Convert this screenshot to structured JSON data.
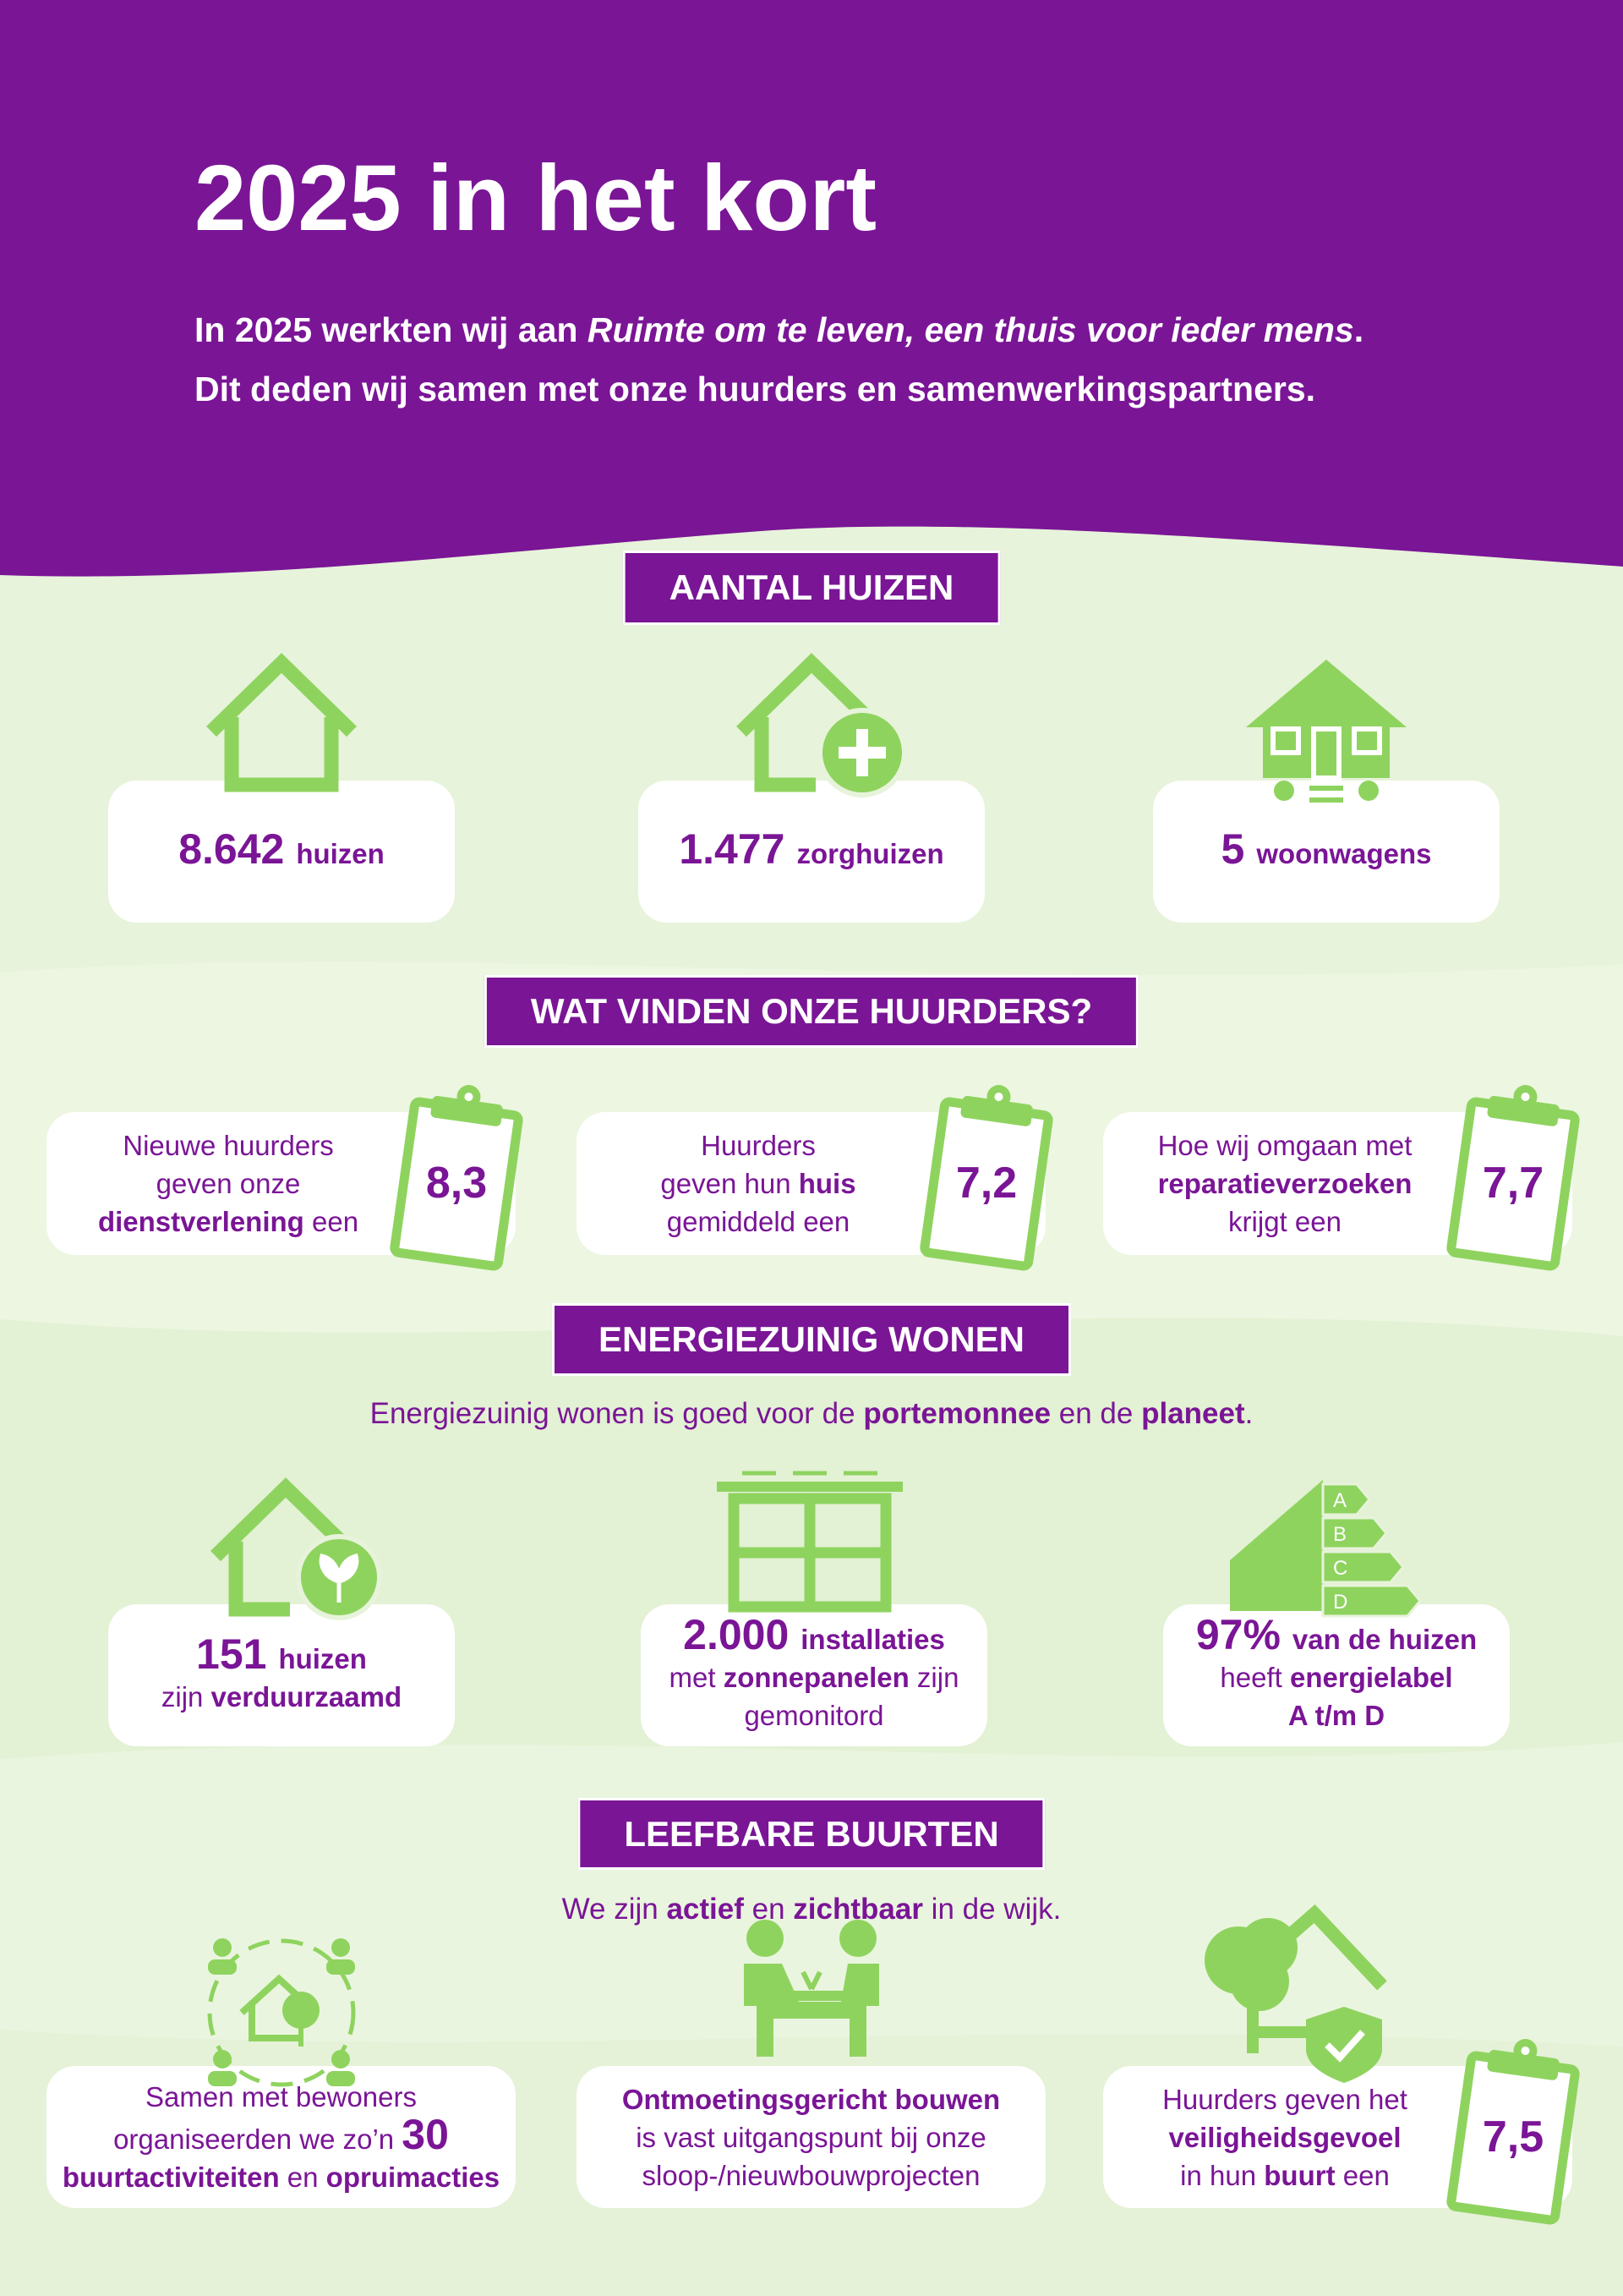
{
  "header": {
    "title": "2025 in het kort",
    "intro": [
      [
        {
          "t": "In 2025 werkten wij aan "
        },
        {
          "t": "Ruimte om te leven, een thuis voor ieder mens",
          "i": true
        },
        {
          "t": "."
        }
      ],
      [
        {
          "t": "Dit deden wij samen met onze huurders en samenwerkingspartners."
        }
      ]
    ]
  },
  "sections": [
    {
      "title": "AANTAL HUIZEN",
      "items": [
        {
          "lines": [
            [
              {
                "t": "8.642",
                "big": true
              },
              {
                "t": "huizen",
                "b": true
              }
            ]
          ]
        },
        {
          "lines": [
            [
              {
                "t": "1.477",
                "big": true
              },
              {
                "t": "zorghuizen",
                "b": true
              }
            ]
          ]
        },
        {
          "lines": [
            [
              {
                "t": "5",
                "big": true
              },
              {
                "t": "woonwagens",
                "b": true
              }
            ]
          ]
        }
      ]
    },
    {
      "title": "WAT VINDEN ONZE HUURDERS?",
      "items": [
        {
          "lines": [
            [
              {
                "t": "Nieuwe huurders"
              }
            ],
            [
              {
                "t": "geven onze"
              }
            ],
            [
              {
                "t": "dienstverlening",
                "b": true
              },
              {
                "t": " een"
              }
            ]
          ],
          "score": "8,3"
        },
        {
          "lines": [
            [
              {
                "t": "Huurders"
              }
            ],
            [
              {
                "t": "geven hun "
              },
              {
                "t": "huis",
                "b": true
              }
            ],
            [
              {
                "t": "gemiddeld een"
              }
            ]
          ],
          "score": "7,2"
        },
        {
          "lines": [
            [
              {
                "t": "Hoe wij omgaan met"
              }
            ],
            [
              {
                "t": "reparatieverzoeken",
                "b": true
              }
            ],
            [
              {
                "t": "krijgt een"
              }
            ]
          ],
          "score": "7,7"
        }
      ]
    },
    {
      "title": "ENERGIEZUINIG WONEN",
      "intro": [
        [
          {
            "t": "Energiezuinig wonen is goed voor de "
          },
          {
            "t": "portemonnee",
            "b": true
          },
          {
            "t": " en de "
          },
          {
            "t": "planeet",
            "b": true
          },
          {
            "t": "."
          }
        ]
      ],
      "items": [
        {
          "lines": [
            [
              {
                "t": "151",
                "big": true
              },
              {
                "t": "huizen",
                "b": true
              }
            ],
            [
              {
                "t": "zijn "
              },
              {
                "t": "verduurzaamd",
                "b": true
              }
            ]
          ]
        },
        {
          "lines": [
            [
              {
                "t": "2.000",
                "big": true
              },
              {
                "t": "installaties",
                "b": true
              }
            ],
            [
              {
                "t": "met "
              },
              {
                "t": "zonnepanelen",
                "b": true
              },
              {
                "t": " zijn"
              }
            ],
            [
              {
                "t": "gemonitord"
              }
            ]
          ]
        },
        {
          "lines": [
            [
              {
                "t": "97%",
                "big": true
              },
              {
                "t": "van de huizen",
                "b": true
              }
            ],
            [
              {
                "t": "heeft "
              },
              {
                "t": "energielabel",
                "b": true
              }
            ],
            [
              {
                "t": "A t/m D",
                "b": true
              }
            ]
          ],
          "icon_labels": [
            "A",
            "B",
            "C",
            "D"
          ]
        }
      ]
    },
    {
      "title": "LEEFBARE BUURTEN",
      "intro": [
        [
          {
            "t": "We zijn "
          },
          {
            "t": "actief",
            "b": true
          },
          {
            "t": " en "
          },
          {
            "t": "zichtbaar",
            "b": true
          },
          {
            "t": " in de wijk."
          }
        ]
      ],
      "items": [
        {
          "lines": [
            [
              {
                "t": "Samen met bewoners"
              }
            ],
            [
              {
                "t": "organiseerden we zo’n "
              },
              {
                "t": "30",
                "big": true
              }
            ],
            [
              {
                "t": "buurtactiviteiten",
                "b": true
              },
              {
                "t": " en "
              },
              {
                "t": "opruimacties",
                "b": true
              }
            ]
          ]
        },
        {
          "lines": [
            [
              {
                "t": "Ontmoetingsgericht bouwen",
                "b": true
              }
            ],
            [
              {
                "t": "is vast uitgangspunt bij onze"
              }
            ],
            [
              {
                "t": "sloop-/nieuwbouwprojecten"
              }
            ]
          ]
        },
        {
          "lines": [
            [
              {
                "t": "Huurders geven het"
              }
            ],
            [
              {
                "t": "veiligheidsgevoel",
                "b": true
              }
            ],
            [
              {
                "t": "in hun "
              },
              {
                "t": "buurt",
                "b": true
              },
              {
                "t": " een"
              }
            ]
          ],
          "score": "7,5"
        }
      ]
    }
  ]
}
